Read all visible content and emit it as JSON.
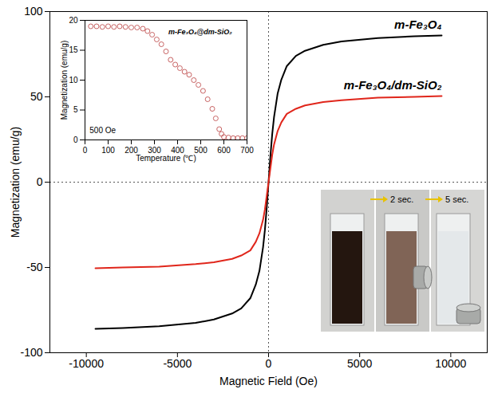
{
  "chart_data": [
    {
      "type": "line",
      "x_label": "Magnetic Field (Oe)",
      "y_label": "Magnetization (emu/g)",
      "xlim": [
        -12000,
        12000
      ],
      "xticks": [
        -10000,
        -5000,
        0,
        5000,
        10000
      ],
      "ylim": [
        -100,
        100
      ],
      "yticks": [
        -100,
        -50,
        0,
        50,
        100
      ],
      "x": [
        -9500,
        -8000,
        -6000,
        -4000,
        -3000,
        -2000,
        -1500,
        -1000,
        -700,
        -500,
        -300,
        -200,
        -100,
        0,
        100,
        200,
        300,
        500,
        700,
        1000,
        1500,
        2000,
        3000,
        4000,
        6000,
        8000,
        9500
      ],
      "series": [
        {
          "name": "m-Fe₃O₄",
          "color": "#000000",
          "values": [
            -86,
            -85.5,
            -84.5,
            -82.5,
            -80.5,
            -77,
            -74,
            -68,
            -60,
            -52,
            -38,
            -28,
            -15,
            0,
            15,
            28,
            38,
            52,
            60,
            68,
            74,
            77,
            80.5,
            82.5,
            84.5,
            85.5,
            86
          ]
        },
        {
          "name": "m-Fe₃O₄/dm-SiO₂",
          "color": "#e0261b",
          "values": [
            -50.5,
            -50,
            -49.5,
            -48,
            -47,
            -45,
            -43,
            -40,
            -35,
            -30,
            -22,
            -16,
            -8,
            0,
            8,
            16,
            22,
            30,
            35,
            40,
            43,
            45,
            47,
            48,
            49.5,
            50,
            50.5
          ]
        }
      ],
      "annotations": [
        "2 sec.",
        "5 sec."
      ]
    },
    {
      "type": "scatter",
      "title": "m-Fe₃O₄@dm-SiO₂",
      "annotations": [
        "500 Oe"
      ],
      "x_label": "Temperature (℃)",
      "y_label": "Magnetization (emu/g)",
      "xlim": [
        0,
        700
      ],
      "xticks": [
        0,
        100,
        200,
        300,
        400,
        500,
        600,
        700
      ],
      "ylim": [
        0,
        20
      ],
      "yticks": [
        0,
        5,
        10,
        15,
        20
      ],
      "marker": "circle",
      "color": "#c86464",
      "x": [
        25,
        50,
        75,
        100,
        125,
        150,
        175,
        200,
        225,
        250,
        270,
        290,
        310,
        330,
        350,
        370,
        390,
        410,
        430,
        450,
        470,
        490,
        510,
        530,
        550,
        565,
        580,
        590,
        600,
        620,
        640,
        660,
        680,
        700
      ],
      "values": [
        19,
        19,
        18.9,
        19,
        18.9,
        19,
        18.9,
        18.8,
        18.8,
        18.6,
        18.2,
        17.6,
        16.8,
        16,
        14.8,
        13.4,
        12.6,
        12,
        11.4,
        10.9,
        10,
        9.2,
        8.2,
        6.8,
        5.2,
        3.6,
        1.8,
        1,
        0.5,
        0.4,
        0.3,
        0.3,
        0.3,
        0.3
      ]
    }
  ]
}
